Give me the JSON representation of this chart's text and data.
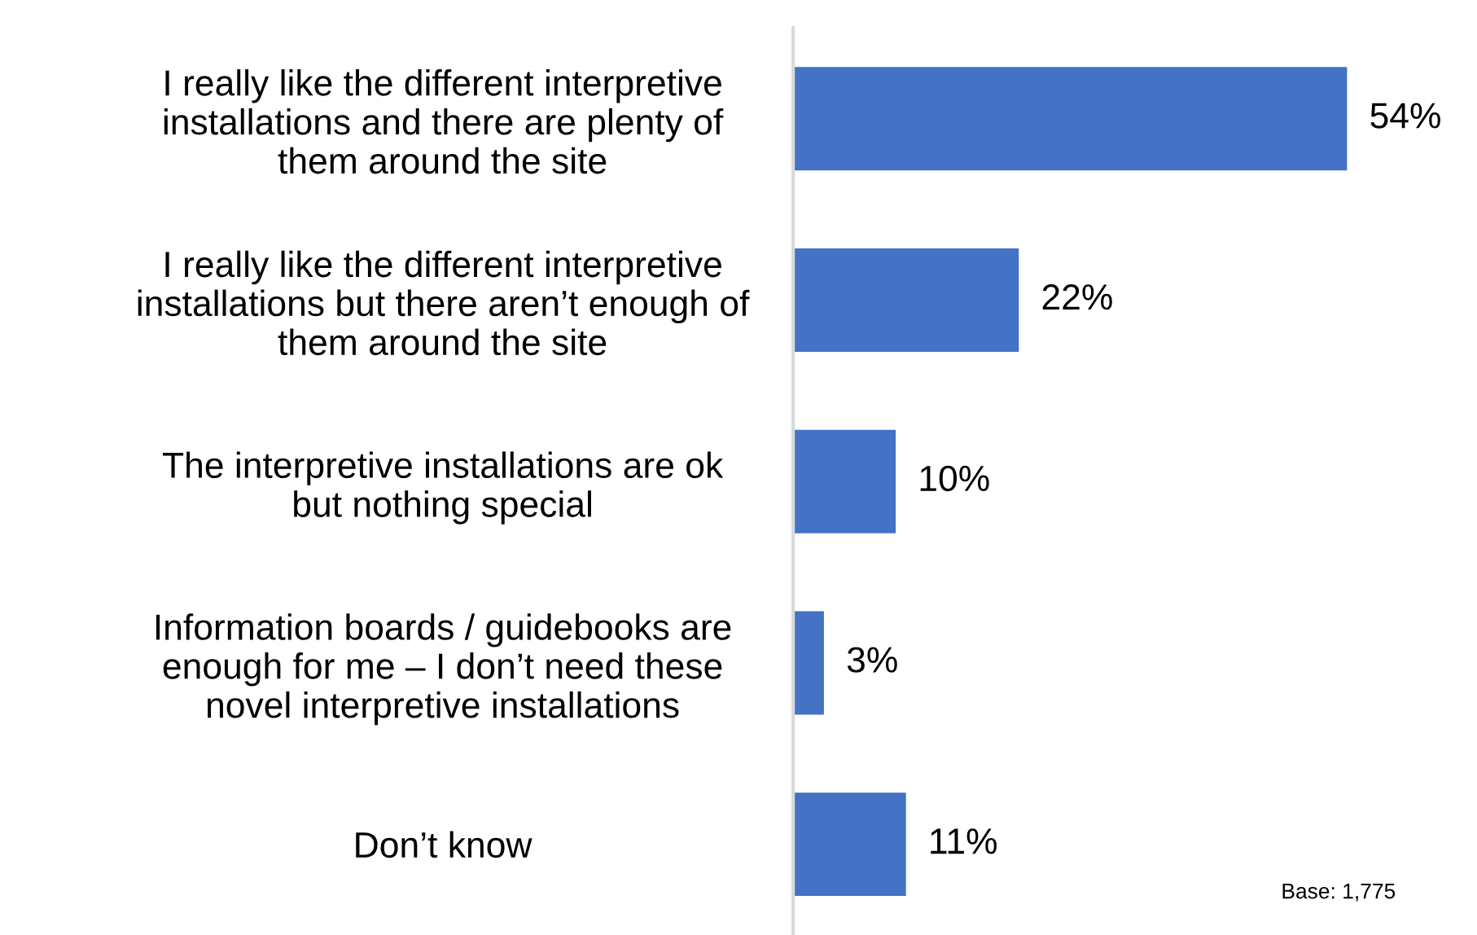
{
  "chart_data": {
    "type": "bar",
    "orientation": "horizontal",
    "categories": [
      "I really like the different interpretive\ninstallations and there are plenty of\nthem around the site",
      "I really like the different interpretive\ninstallations but there aren’t enough of\nthem around the site",
      "The interpretive installations are ok\nbut nothing special",
      "Information boards / guidebooks are\nenough for me – I don’t need these\nnovel interpretive installations",
      "Don’t know"
    ],
    "values": [
      54,
      22,
      10,
      3,
      11
    ],
    "value_labels": [
      "54%",
      "22%",
      "10%",
      "3%",
      "11%"
    ],
    "color": "#4472c4",
    "annotations": [
      "Base: 1,775"
    ],
    "grid": false,
    "legend": false
  }
}
